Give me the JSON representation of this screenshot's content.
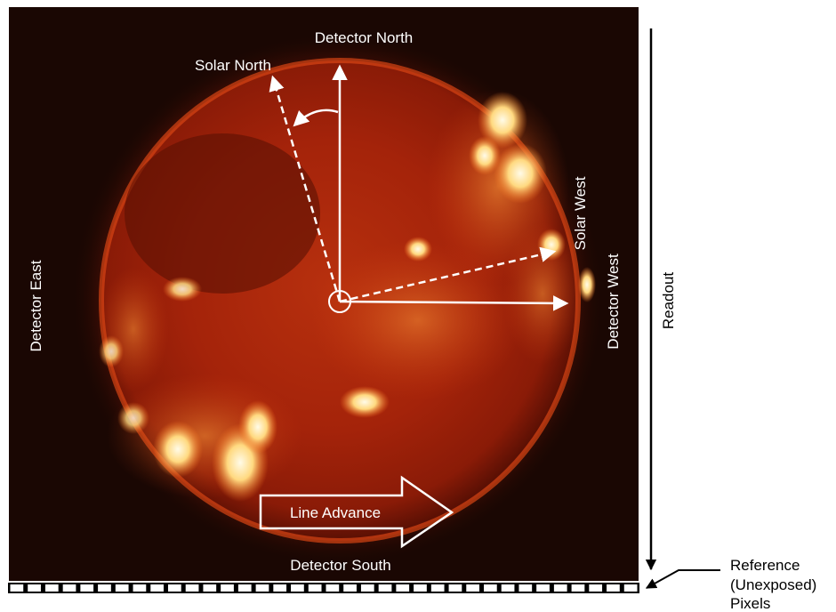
{
  "labels": {
    "detector_north": "Detector North",
    "solar_north": "Solar North",
    "solar_west": "Solar West",
    "detector_west": "Detector West",
    "detector_east": "Detector East",
    "detector_south": "Detector South",
    "line_advance": "Line Advance",
    "readout": "Readout",
    "reference_line1": "Reference",
    "reference_line2": "(Unexposed)",
    "reference_line3": "Pixels"
  },
  "colors": {
    "frame_background": "#1a0703",
    "disk_core": "#ff6a1a",
    "disk_mid": "#c92a0c",
    "disk_edge": "#6e1205",
    "bright_region": "#fff2c8",
    "annotation": "#ffffff",
    "outside_text": "#000000"
  },
  "reference_pixel_count": 36
}
